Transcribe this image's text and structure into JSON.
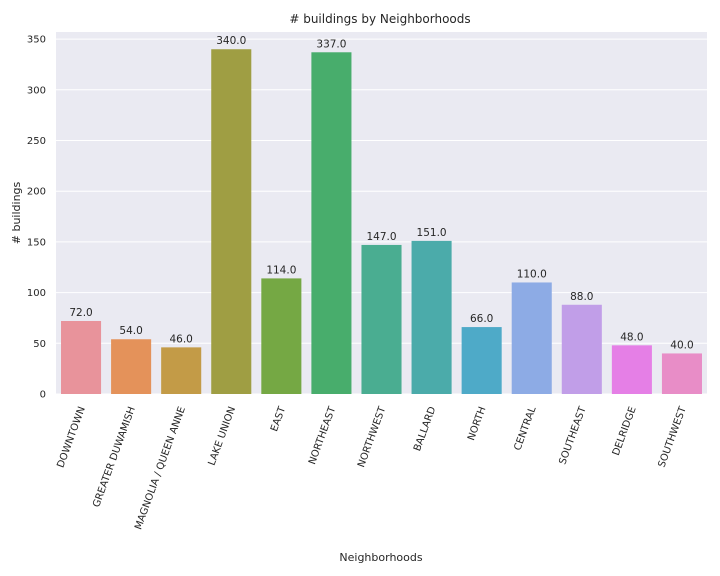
{
  "chart_data": {
    "type": "bar",
    "title": "# buildings by Neighborhoods",
    "xlabel": "Neighborhoods",
    "ylabel": "# buildings",
    "ylim": [
      0,
      357
    ],
    "yticks": [
      0,
      50,
      100,
      150,
      200,
      250,
      300,
      350
    ],
    "grid": true,
    "categories": [
      "DOWNTOWN",
      "GREATER DUWAMISH",
      "MAGNOLIA / QUEEN ANNE",
      "LAKE UNION",
      "EAST",
      "NORTHEAST",
      "NORTHWEST",
      "BALLARD",
      "NORTH",
      "CENTRAL",
      "SOUTHEAST",
      "DELRIDGE",
      "SOUTHWEST"
    ],
    "values": [
      72,
      54,
      46,
      340,
      114,
      337,
      147,
      151,
      66,
      110,
      88,
      48,
      40
    ],
    "data_labels": [
      "72.0",
      "54.0",
      "46.0",
      "340.0",
      "114.0",
      "337.0",
      "147.0",
      "151.0",
      "66.0",
      "110.0",
      "88.0",
      "48.0",
      "40.0"
    ],
    "colors": [
      "#e8939b",
      "#e4925a",
      "#c39b47",
      "#9f9e43",
      "#75a844",
      "#48ad6c",
      "#4aad91",
      "#4babaa",
      "#4eaac8",
      "#8dabe5",
      "#c19ee8",
      "#e57fe6",
      "#e88dc7"
    ],
    "background": "#eaeaf2",
    "grid_color": "#ffffff"
  }
}
